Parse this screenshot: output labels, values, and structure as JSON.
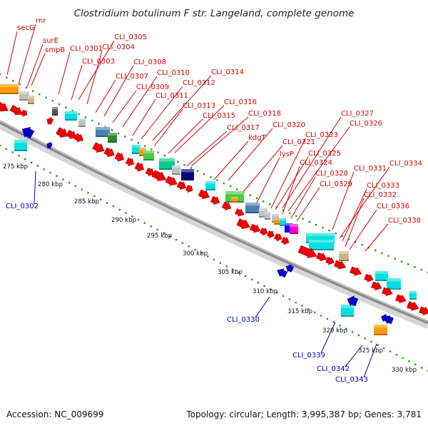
{
  "title": "Clostridium botulinum F str. Langeland, complete genome",
  "footer": {
    "accession": "Accession: NC_009699",
    "summary": "Topology: circular; Length: 3,995,387 bp; Genes: 3,781"
  },
  "colors": {
    "plus_label": "#d40000",
    "minus_label": "#0000b4",
    "plus_arrow": "#ee0000",
    "minus_arrow": "#0000cc",
    "backbone": "#8a8a8a",
    "tick_dots": "#2f8f1f",
    "category_colors": [
      "#ff9900",
      "#00e0e0",
      "#2e8b2e",
      "#4682b4",
      "#c0c0c0",
      "#d2b48c",
      "#000080",
      "#ff00cc",
      "#44cc44",
      "#00cc88",
      "#555555",
      "#0000ff"
    ]
  },
  "scale_ticks": [
    "275 kbp",
    "280 kbp",
    "285 kbp",
    "290 kbp",
    "295 kbp",
    "300 kbp",
    "305 kbp",
    "310 kbp",
    "315 kbp",
    "320 kbp",
    "325 kbp",
    "330 kbp"
  ],
  "plus_gene_labels": [
    "rnr",
    "secG",
    "surE",
    "smpB",
    "CLI_0301",
    "CLI_0305",
    "CLI_0304",
    "CLI_0303",
    "CLI_0308",
    "CLI_0307",
    "CLI_0310",
    "CLI_0309",
    "CLI_0311",
    "CLI_0314",
    "CLI_0312",
    "CLI_0313",
    "CLI_0316",
    "CLI_0315",
    "CLI_0318",
    "CLI_0317",
    "kdgT",
    "CLI_0320",
    "CLI_0321",
    "lysP",
    "CLI_0327",
    "CLI_0326",
    "CLI_0323",
    "CLI_0325",
    "CLI_0324",
    "CLI_0328",
    "CLI_0329",
    "CLI_0331",
    "CLI_0334",
    "CLI_0333",
    "CLI_0332",
    "CLI_0336",
    "CLI_0338"
  ],
  "minus_gene_labels": [
    "CLI_0302",
    "CLI_0330",
    "CLI_0339",
    "CLI_0342",
    "CLI_0343"
  ]
}
